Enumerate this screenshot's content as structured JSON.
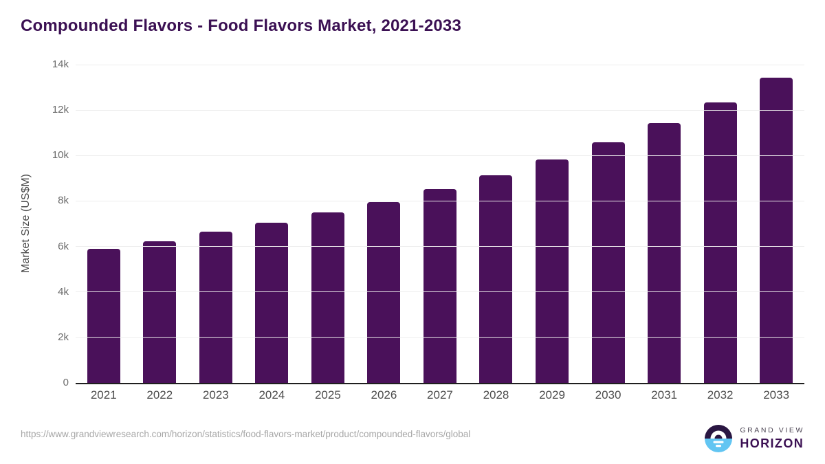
{
  "header": {
    "title": "Compounded Flavors - Food Flavors Market, 2021-2033"
  },
  "chart_data": {
    "type": "bar",
    "title": "Compounded Flavors - Food Flavors Market, 2021-2033",
    "categories": [
      "2021",
      "2022",
      "2023",
      "2024",
      "2025",
      "2026",
      "2027",
      "2028",
      "2029",
      "2030",
      "2031",
      "2032",
      "2033"
    ],
    "values": [
      5900,
      6230,
      6650,
      7040,
      7490,
      7950,
      8530,
      9140,
      9840,
      10580,
      11420,
      12330,
      13440
    ],
    "xlabel": "",
    "ylabel": "Market Size (US$M)",
    "ylim": [
      0,
      14000
    ],
    "ytick_step": 2000,
    "ytick_labels": [
      "0",
      "2k",
      "4k",
      "6k",
      "8k",
      "10k",
      "12k",
      "14k"
    ],
    "grid": true,
    "legend": "none",
    "bar_color": "#4a115a"
  },
  "footer": {
    "source_url": "https://www.grandviewresearch.com/horizon/statistics/food-flavors-market/product/compounded-flavors/global",
    "logo": {
      "line1": "GRAND VIEW",
      "line2": "HORIZON"
    }
  },
  "colors": {
    "title_text": "#3b1053",
    "bar": "#4a115a",
    "axis_line": "#1f1f1f",
    "gridline": "#ededed",
    "tick_text": "#6b6b6b",
    "x_label_text": "#4d4d4d",
    "url_text": "#a6a6a6",
    "logo_dark": "#2a1642",
    "logo_blue": "#62c5f2"
  }
}
